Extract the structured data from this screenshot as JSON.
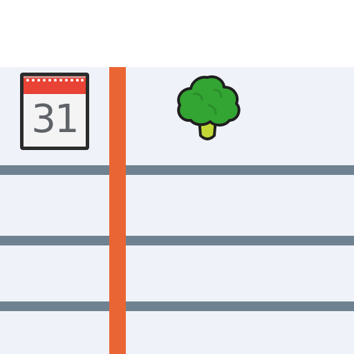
{
  "calendar": {
    "day": "31",
    "icon": "calendar-icon",
    "header_color": "#e94335"
  },
  "item": {
    "icon": "broccoli-icon"
  },
  "colors": {
    "timeline_line": "#ea6534",
    "grid_line": "#6f8291",
    "grid_background": "#eff3f9"
  }
}
